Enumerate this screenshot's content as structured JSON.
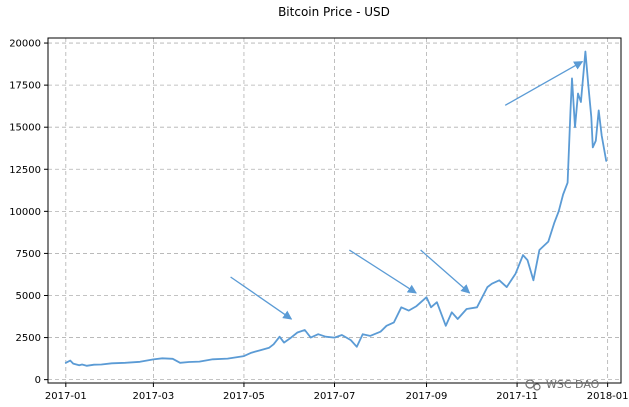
{
  "chart_data": {
    "type": "line",
    "title": "Bitcoin Price - USD",
    "xlabel": "",
    "ylabel": "",
    "x_ticks": [
      "2017-01",
      "2017-03",
      "2017-05",
      "2017-07",
      "2017-09",
      "2017-11",
      "2018-01"
    ],
    "y_ticks": [
      "0",
      "2500",
      "5000",
      "7500",
      "10000",
      "12500",
      "15000",
      "17500",
      "20000"
    ],
    "xlim": [
      "2016-12-20",
      "2018-01-10"
    ],
    "ylim": [
      -200,
      20300
    ],
    "grid": true,
    "legend": "none",
    "series": [
      {
        "color": "#5b9bd5",
        "points": [
          [
            "2017-01-01",
            1000
          ],
          [
            "2017-01-04",
            1130
          ],
          [
            "2017-01-06",
            950
          ],
          [
            "2017-01-10",
            850
          ],
          [
            "2017-01-12",
            900
          ],
          [
            "2017-01-15",
            820
          ],
          [
            "2017-01-20",
            890
          ],
          [
            "2017-01-25",
            900
          ],
          [
            "2017-02-01",
            970
          ],
          [
            "2017-02-10",
            1000
          ],
          [
            "2017-02-20",
            1060
          ],
          [
            "2017-03-01",
            1200
          ],
          [
            "2017-03-07",
            1270
          ],
          [
            "2017-03-14",
            1240
          ],
          [
            "2017-03-19",
            1000
          ],
          [
            "2017-03-25",
            1050
          ],
          [
            "2017-04-01",
            1070
          ],
          [
            "2017-04-10",
            1210
          ],
          [
            "2017-04-20",
            1250
          ],
          [
            "2017-05-01",
            1400
          ],
          [
            "2017-05-06",
            1600
          ],
          [
            "2017-05-12",
            1750
          ],
          [
            "2017-05-18",
            1900
          ],
          [
            "2017-05-21",
            2100
          ],
          [
            "2017-05-25",
            2550
          ],
          [
            "2017-05-28",
            2200
          ],
          [
            "2017-06-01",
            2450
          ],
          [
            "2017-06-06",
            2800
          ],
          [
            "2017-06-11",
            2950
          ],
          [
            "2017-06-15",
            2500
          ],
          [
            "2017-06-20",
            2700
          ],
          [
            "2017-06-25",
            2550
          ],
          [
            "2017-07-01",
            2500
          ],
          [
            "2017-07-06",
            2650
          ],
          [
            "2017-07-12",
            2350
          ],
          [
            "2017-07-16",
            1950
          ],
          [
            "2017-07-20",
            2700
          ],
          [
            "2017-07-25",
            2600
          ],
          [
            "2017-08-01",
            2850
          ],
          [
            "2017-08-05",
            3200
          ],
          [
            "2017-08-10",
            3400
          ],
          [
            "2017-08-15",
            4300
          ],
          [
            "2017-08-20",
            4100
          ],
          [
            "2017-08-25",
            4350
          ],
          [
            "2017-09-01",
            4900
          ],
          [
            "2017-09-04",
            4300
          ],
          [
            "2017-09-08",
            4600
          ],
          [
            "2017-09-14",
            3200
          ],
          [
            "2017-09-18",
            4000
          ],
          [
            "2017-09-22",
            3600
          ],
          [
            "2017-09-28",
            4200
          ],
          [
            "2017-10-05",
            4300
          ],
          [
            "2017-10-12",
            5500
          ],
          [
            "2017-10-15",
            5700
          ],
          [
            "2017-10-20",
            5900
          ],
          [
            "2017-10-25",
            5500
          ],
          [
            "2017-10-31",
            6300
          ],
          [
            "2017-11-05",
            7400
          ],
          [
            "2017-11-08",
            7100
          ],
          [
            "2017-11-12",
            5900
          ],
          [
            "2017-11-16",
            7700
          ],
          [
            "2017-11-22",
            8200
          ],
          [
            "2017-11-26",
            9300
          ],
          [
            "2017-11-29",
            10000
          ],
          [
            "2017-12-02",
            11000
          ],
          [
            "2017-12-05",
            11700
          ],
          [
            "2017-12-07",
            16000
          ],
          [
            "2017-12-08",
            17900
          ],
          [
            "2017-12-10",
            15000
          ],
          [
            "2017-12-12",
            17000
          ],
          [
            "2017-12-14",
            16500
          ],
          [
            "2017-12-17",
            19500
          ],
          [
            "2017-12-19",
            17500
          ],
          [
            "2017-12-21",
            15600
          ],
          [
            "2017-12-22",
            13800
          ],
          [
            "2017-12-24",
            14200
          ],
          [
            "2017-12-26",
            16000
          ],
          [
            "2017-12-28",
            14500
          ],
          [
            "2017-12-31",
            13000
          ]
        ]
      }
    ],
    "annotations": [
      {
        "type": "arrow",
        "from": [
          "2017-04-22",
          6100
        ],
        "to": [
          "2017-06-02",
          3600
        ]
      },
      {
        "type": "arrow",
        "from": [
          "2017-07-11",
          7700
        ],
        "to": [
          "2017-08-25",
          5150
        ]
      },
      {
        "type": "arrow",
        "from": [
          "2017-08-28",
          7700
        ],
        "to": [
          "2017-09-30",
          5150
        ]
      },
      {
        "type": "arrow",
        "from": [
          "2017-10-24",
          16300
        ],
        "to": [
          "2017-12-15",
          18900
        ]
      }
    ]
  },
  "watermark": {
    "text": "WSC DAO"
  },
  "colors": {
    "line": "#5b9bd5",
    "grid": "#b0b0b0",
    "axis": "#000000"
  }
}
